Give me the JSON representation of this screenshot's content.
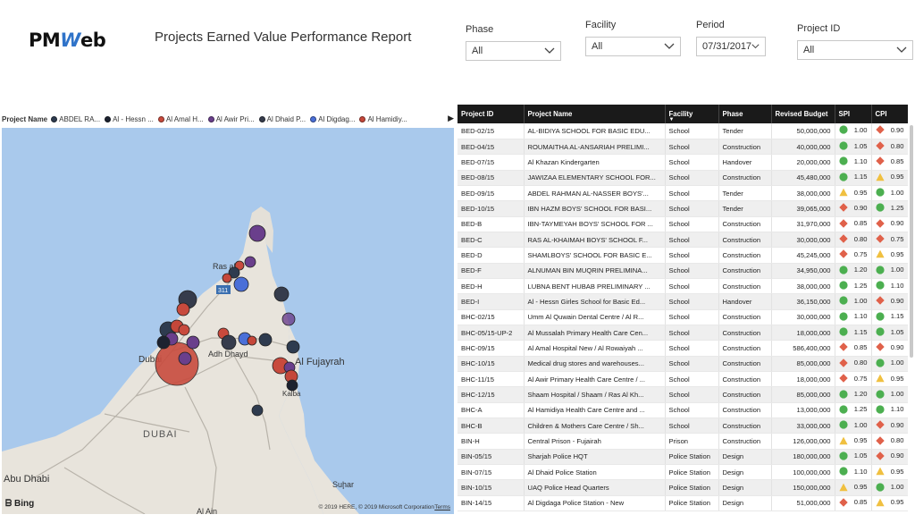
{
  "header": {
    "logo_pm": "PM",
    "logo_w": "W",
    "logo_eb": "eb",
    "title": "Projects Earned Value Performance Report"
  },
  "filters": {
    "phase": {
      "label": "Phase",
      "value": "All"
    },
    "facility": {
      "label": "Facility",
      "value": "All"
    },
    "period": {
      "label": "Period",
      "value": "07/31/2017"
    },
    "project_id": {
      "label": "Project ID",
      "value": "All"
    }
  },
  "legend": {
    "title": "Project Name",
    "items": [
      {
        "label": "ABDEL RA...",
        "color": "#2e3b4f"
      },
      {
        "label": "Al - Hessn ...",
        "color": "#1c2230"
      },
      {
        "label": "Al Amal H...",
        "color": "#c84a3d"
      },
      {
        "label": "Al Awir Pri...",
        "color": "#6a3f8c"
      },
      {
        "label": "Al Dhaid P...",
        "color": "#363c4c"
      },
      {
        "label": "Al Digdag...",
        "color": "#4a6fd8"
      },
      {
        "label": "Al Hamidiy...",
        "color": "#c5473a"
      }
    ]
  },
  "map": {
    "places": {
      "ras": "Ras al",
      "dubai": "Dubai",
      "adh_dhayd": "Adh Dhayd",
      "fujairah": "Al Fujayrah",
      "kalba": "Kalba",
      "dubai_region": "DUBAI",
      "abu_dhabi": "Abu Dhabi",
      "suhar": "Suḩar",
      "al_ain": "Al Ain",
      "road_311": "311",
      "road_e11": "E11"
    },
    "bing": "Bing",
    "copyright": "© 2019 HERE, © 2019 Microsoft Corporation",
    "terms": "Terms"
  },
  "table": {
    "columns": [
      "Project ID",
      "Project Name",
      "Facility",
      "Phase",
      "Revised Budget",
      "SPI",
      "CPI"
    ],
    "rows": [
      {
        "id": "BED-02/15",
        "name": "AL-BIDIYA SCHOOL FOR BASIC EDU...",
        "facility": "School",
        "phase": "Tender",
        "budget": "50,000,000",
        "spi": "1.00",
        "spi_s": "green",
        "cpi": "0.90",
        "cpi_s": "red"
      },
      {
        "id": "BED-04/15",
        "name": "ROUMAITHA AL-ANSARIAH PRELIMI...",
        "facility": "School",
        "phase": "Construction",
        "budget": "40,000,000",
        "spi": "1.05",
        "spi_s": "green",
        "cpi": "0.80",
        "cpi_s": "red"
      },
      {
        "id": "BED-07/15",
        "name": "Al Khazan Kindergarten",
        "facility": "School",
        "phase": "Handover",
        "budget": "20,000,000",
        "spi": "1.10",
        "spi_s": "green",
        "cpi": "0.85",
        "cpi_s": "red"
      },
      {
        "id": "BED-08/15",
        "name": "JAWIZAA ELEMENTARY SCHOOL FOR...",
        "facility": "School",
        "phase": "Construction",
        "budget": "45,480,000",
        "spi": "1.15",
        "spi_s": "green",
        "cpi": "0.95",
        "cpi_s": "yellow"
      },
      {
        "id": "BED-09/15",
        "name": "ABDEL RAHMAN AL-NASSER BOYS'...",
        "facility": "School",
        "phase": "Tender",
        "budget": "38,000,000",
        "spi": "0.95",
        "spi_s": "yellow",
        "cpi": "1.00",
        "cpi_s": "green"
      },
      {
        "id": "BED-10/15",
        "name": "IBN HAZM BOYS' SCHOOL FOR BASI...",
        "facility": "School",
        "phase": "Tender",
        "budget": "39,065,000",
        "spi": "0.90",
        "spi_s": "red",
        "cpi": "1.25",
        "cpi_s": "green"
      },
      {
        "id": "BED-B",
        "name": "IBN-TAYMEYAH BOYS' SCHOOL FOR ...",
        "facility": "School",
        "phase": "Construction",
        "budget": "31,970,000",
        "spi": "0.85",
        "spi_s": "red",
        "cpi": "0.90",
        "cpi_s": "red"
      },
      {
        "id": "BED-C",
        "name": "RAS AL-KHAIMAH BOYS' SCHOOL F...",
        "facility": "School",
        "phase": "Construction",
        "budget": "30,000,000",
        "spi": "0.80",
        "spi_s": "red",
        "cpi": "0.75",
        "cpi_s": "red"
      },
      {
        "id": "BED-D",
        "name": "SHAMLBOYS' SCHOOL FOR BASIC E...",
        "facility": "School",
        "phase": "Construction",
        "budget": "45,245,000",
        "spi": "0.75",
        "spi_s": "red",
        "cpi": "0.95",
        "cpi_s": "yellow"
      },
      {
        "id": "BED-F",
        "name": "ALNUMAN BIN MUQRIN PRELIMINA...",
        "facility": "School",
        "phase": "Construction",
        "budget": "34,950,000",
        "spi": "1.20",
        "spi_s": "green",
        "cpi": "1.00",
        "cpi_s": "green"
      },
      {
        "id": "BED-H",
        "name": "LUBNA BENT HUBAB PRELIMINARY ...",
        "facility": "School",
        "phase": "Construction",
        "budget": "38,000,000",
        "spi": "1.25",
        "spi_s": "green",
        "cpi": "1.10",
        "cpi_s": "green"
      },
      {
        "id": "BED-I",
        "name": "Al - Hessn Girles School for Basic Ed...",
        "facility": "School",
        "phase": "Handover",
        "budget": "36,150,000",
        "spi": "1.00",
        "spi_s": "green",
        "cpi": "0.90",
        "cpi_s": "red"
      },
      {
        "id": "BHC-02/15",
        "name": "Umm Al Quwain Dental Centre / Al R...",
        "facility": "School",
        "phase": "Construction",
        "budget": "30,000,000",
        "spi": "1.10",
        "spi_s": "green",
        "cpi": "1.15",
        "cpi_s": "green"
      },
      {
        "id": "BHC-05/15-UP-2",
        "name": "Al Mussalah Primary Health Care Cen...",
        "facility": "School",
        "phase": "Construction",
        "budget": "18,000,000",
        "spi": "1.15",
        "spi_s": "green",
        "cpi": "1.05",
        "cpi_s": "green"
      },
      {
        "id": "BHC-09/15",
        "name": "Al Amal Hospital New / Al Rowaiyah ...",
        "facility": "School",
        "phase": "Construction",
        "budget": "586,400,000",
        "spi": "0.85",
        "spi_s": "red",
        "cpi": "0.90",
        "cpi_s": "red"
      },
      {
        "id": "BHC-10/15",
        "name": "Medical drug stores and warehouses...",
        "facility": "School",
        "phase": "Construction",
        "budget": "85,000,000",
        "spi": "0.80",
        "spi_s": "red",
        "cpi": "1.00",
        "cpi_s": "green"
      },
      {
        "id": "BHC-11/15",
        "name": "Al Awir Primary Health Care Centre / ...",
        "facility": "School",
        "phase": "Construction",
        "budget": "18,000,000",
        "spi": "0.75",
        "spi_s": "red",
        "cpi": "0.95",
        "cpi_s": "yellow"
      },
      {
        "id": "BHC-12/15",
        "name": "Shaam Hospital / Shaam / Ras Al Kh...",
        "facility": "School",
        "phase": "Construction",
        "budget": "85,000,000",
        "spi": "1.20",
        "spi_s": "green",
        "cpi": "1.00",
        "cpi_s": "green"
      },
      {
        "id": "BHC-A",
        "name": "Al Hamidiya Health Care Centre and ...",
        "facility": "School",
        "phase": "Construction",
        "budget": "13,000,000",
        "spi": "1.25",
        "spi_s": "green",
        "cpi": "1.10",
        "cpi_s": "green"
      },
      {
        "id": "BHC-B",
        "name": "Children & Mothers Care Centre / Sh...",
        "facility": "School",
        "phase": "Construction",
        "budget": "33,000,000",
        "spi": "1.00",
        "spi_s": "green",
        "cpi": "0.90",
        "cpi_s": "red"
      },
      {
        "id": "BIN-H",
        "name": "Central Prison - Fujairah",
        "facility": "Prison",
        "phase": "Construction",
        "budget": "126,000,000",
        "spi": "0.95",
        "spi_s": "yellow",
        "cpi": "0.80",
        "cpi_s": "red"
      },
      {
        "id": "BIN-05/15",
        "name": "Sharjah Police HQT",
        "facility": "Police Station",
        "phase": "Design",
        "budget": "180,000,000",
        "spi": "1.05",
        "spi_s": "green",
        "cpi": "0.90",
        "cpi_s": "red"
      },
      {
        "id": "BIN-07/15",
        "name": "Al Dhaid Police Station",
        "facility": "Police Station",
        "phase": "Design",
        "budget": "100,000,000",
        "spi": "1.10",
        "spi_s": "green",
        "cpi": "0.95",
        "cpi_s": "yellow"
      },
      {
        "id": "BIN-10/15",
        "name": "UAQ Police Head Quarters",
        "facility": "Police Station",
        "phase": "Design",
        "budget": "150,000,000",
        "spi": "0.95",
        "spi_s": "yellow",
        "cpi": "1.00",
        "cpi_s": "green"
      },
      {
        "id": "BIN-14/15",
        "name": "Al Digdaga Police Station - New",
        "facility": "Police Station",
        "phase": "Design",
        "budget": "51,000,000",
        "spi": "0.85",
        "spi_s": "red",
        "cpi": "0.95",
        "cpi_s": "yellow"
      }
    ]
  },
  "colors": {
    "header_bg": "#1a1a1a",
    "green": "#4caf50",
    "red": "#e0614a",
    "yellow": "#f0c040",
    "water": "#a9c9ec",
    "land": "#e8e4dc"
  }
}
